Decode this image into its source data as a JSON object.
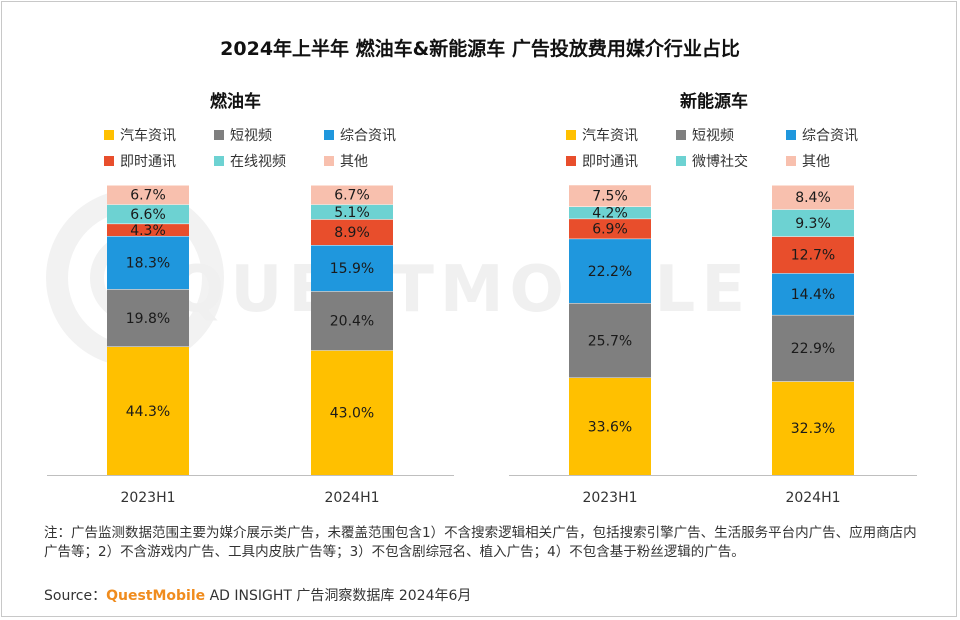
{
  "title": "2024年上半年 燃油车&新能源车 广告投放费用媒介行业占比",
  "watermark": "QUESTMOBILE",
  "chart_data": [
    {
      "type": "bar",
      "stacked": true,
      "title": "燃油车",
      "categories": [
        "2023H1",
        "2024H1"
      ],
      "ylim": [
        0,
        100
      ],
      "unit": "%",
      "grid": false,
      "legend_position": "top",
      "series": [
        {
          "name": "汽车资讯",
          "color": "#ffc000",
          "values": [
            44.3,
            43.0
          ]
        },
        {
          "name": "短视频",
          "color": "#7f7f7f",
          "values": [
            19.8,
            20.4
          ]
        },
        {
          "name": "综合资讯",
          "color": "#1f97dd",
          "values": [
            18.3,
            15.9
          ]
        },
        {
          "name": "即时通讯",
          "color": "#e84e2c",
          "values": [
            4.3,
            8.9
          ]
        },
        {
          "name": "在线视频",
          "color": "#6dd2d2",
          "values": [
            6.6,
            5.1
          ]
        },
        {
          "name": "其他",
          "color": "#f8c0ae",
          "values": [
            6.7,
            6.7
          ]
        }
      ],
      "labels": [
        [
          "44.3%",
          "19.8%",
          "18.3%",
          "4.3%",
          "6.6%",
          "6.7%"
        ],
        [
          "43.0%",
          "20.4%",
          "15.9%",
          "8.9%",
          "5.1%",
          "6.7%"
        ]
      ]
    },
    {
      "type": "bar",
      "stacked": true,
      "title": "新能源车",
      "categories": [
        "2023H1",
        "2024H1"
      ],
      "ylim": [
        0,
        100
      ],
      "unit": "%",
      "grid": false,
      "legend_position": "top",
      "series": [
        {
          "name": "汽车资讯",
          "color": "#ffc000",
          "values": [
            33.6,
            32.3
          ]
        },
        {
          "name": "短视频",
          "color": "#7f7f7f",
          "values": [
            25.7,
            22.9
          ]
        },
        {
          "name": "综合资讯",
          "color": "#1f97dd",
          "values": [
            22.2,
            14.4
          ]
        },
        {
          "name": "即时通讯",
          "color": "#e84e2c",
          "values": [
            6.9,
            12.7
          ]
        },
        {
          "name": "微博社交",
          "color": "#6dd2d2",
          "values": [
            4.2,
            9.3
          ]
        },
        {
          "name": "其他",
          "color": "#f8c0ae",
          "values": [
            7.5,
            8.4
          ]
        }
      ],
      "labels": [
        [
          "33.6%",
          "25.7%",
          "22.2%",
          "6.9%",
          "4.2%",
          "7.5%"
        ],
        [
          "32.3%",
          "22.9%",
          "14.4%",
          "12.7%",
          "9.3%",
          "8.4%"
        ]
      ]
    }
  ],
  "note": "注：广告监测数据范围主要为媒介展示类广告，未覆盖范围包含1）不含搜索逻辑相关广告，包括搜索引擎广告、生活服务平台内广告、应用商店内广告等；2）不含游戏内广告、工具内皮肤广告等；3）不包含剧综冠名、植入广告；4）不包含基于粉丝逻辑的广告。",
  "source": {
    "prefix": "Source：",
    "brand": "QuestMobile",
    "suffix": " AD INSIGHT 广告洞察数据库 2024年6月"
  }
}
